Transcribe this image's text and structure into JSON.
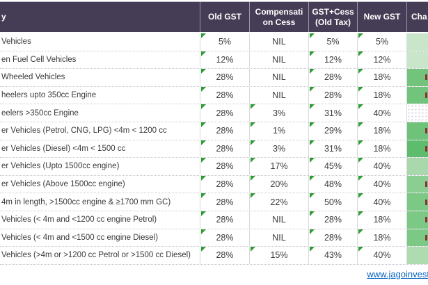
{
  "colors": {
    "header_bg": "#453c55",
    "header_text": "#ffffff",
    "body_text": "#3a3a3a",
    "grid_v": "#d9d9d9",
    "grid_h": "#c9c7d0",
    "triangle": "#2e9b33",
    "link": "#0563c1",
    "mark": "#8b3030",
    "pattern_dot": "#d5d0df",
    "change_light": "#c9e5ca",
    "change_strong": "#5ebd6d"
  },
  "header": {
    "category_label": "y",
    "old_gst": "Old GST",
    "cess": "Compensati\non Cess",
    "gst_cess": "GST+Cess\n(Old Tax)",
    "new_gst": "New GST",
    "change": "Cha"
  },
  "rows": [
    {
      "category": "Vehicles",
      "old_gst": "5%",
      "cess": "NIL",
      "gst_cess": "5%",
      "new_gst": "5%",
      "triangles": [
        "old_gst",
        "gst_cess",
        "new_gst"
      ],
      "change": {
        "color": "#c9e5ca",
        "pattern": false,
        "mark": false
      }
    },
    {
      "category": "en Fuel Cell Vehicles",
      "old_gst": "12%",
      "cess": "NIL",
      "gst_cess": "12%",
      "new_gst": "12%",
      "triangles": [
        "old_gst",
        "gst_cess",
        "new_gst"
      ],
      "change": {
        "color": "#c9e5ca",
        "pattern": false,
        "mark": false
      }
    },
    {
      "category": "Wheeled Vehicles",
      "old_gst": "28%",
      "cess": "NIL",
      "gst_cess": "28%",
      "new_gst": "18%",
      "triangles": [
        "old_gst",
        "gst_cess",
        "new_gst"
      ],
      "change": {
        "color": "#72c47d",
        "pattern": false,
        "mark": true
      }
    },
    {
      "category": "heelers upto 350cc Engine",
      "old_gst": "28%",
      "cess": "NIL",
      "gst_cess": "28%",
      "new_gst": "18%",
      "triangles": [
        "old_gst",
        "gst_cess",
        "new_gst"
      ],
      "change": {
        "color": "#72c47d",
        "pattern": false,
        "mark": true
      }
    },
    {
      "category": "eelers >350cc Engine",
      "old_gst": "28%",
      "cess": "3%",
      "gst_cess": "31%",
      "new_gst": "40%",
      "triangles": [
        "old_gst",
        "cess",
        "gst_cess",
        "new_gst"
      ],
      "change": {
        "color": "#ffffff",
        "pattern": true,
        "mark": false
      }
    },
    {
      "category": "er Vehicles (Petrol, CNG, LPG) <4m < 1200 cc",
      "old_gst": "28%",
      "cess": "1%",
      "gst_cess": "29%",
      "new_gst": "18%",
      "triangles": [
        "old_gst",
        "cess",
        "gst_cess",
        "new_gst"
      ],
      "change": {
        "color": "#6fc27a",
        "pattern": false,
        "mark": true
      }
    },
    {
      "category": "er Vehicles (Diesel) <4m < 1500 cc",
      "old_gst": "28%",
      "cess": "3%",
      "gst_cess": "31%",
      "new_gst": "18%",
      "triangles": [
        "old_gst",
        "cess",
        "gst_cess",
        "new_gst"
      ],
      "change": {
        "color": "#5ebd6d",
        "pattern": false,
        "mark": true
      }
    },
    {
      "category": "er Vehicles (Upto 1500cc engine)",
      "old_gst": "28%",
      "cess": "17%",
      "gst_cess": "45%",
      "new_gst": "40%",
      "triangles": [
        "old_gst",
        "cess",
        "gst_cess",
        "new_gst"
      ],
      "change": {
        "color": "#a9d8ac",
        "pattern": false,
        "mark": false
      }
    },
    {
      "category": "er Vehicles (Above 1500cc engine)",
      "old_gst": "28%",
      "cess": "20%",
      "gst_cess": "48%",
      "new_gst": "40%",
      "triangles": [
        "old_gst",
        "cess",
        "gst_cess",
        "new_gst"
      ],
      "change": {
        "color": "#8bce92",
        "pattern": false,
        "mark": true
      }
    },
    {
      "category": "4m in length, >1500cc engine & ≥1700 mm GC)",
      "old_gst": "28%",
      "cess": "22%",
      "gst_cess": "50%",
      "new_gst": "40%",
      "triangles": [
        "old_gst",
        "cess",
        "gst_cess",
        "new_gst"
      ],
      "change": {
        "color": "#7cc986",
        "pattern": false,
        "mark": true
      }
    },
    {
      "category": "Vehicles (< 4m and <1200 cc engine Petrol)",
      "old_gst": "28%",
      "cess": "NIL",
      "gst_cess": "28%",
      "new_gst": "18%",
      "triangles": [
        "old_gst",
        "gst_cess",
        "new_gst"
      ],
      "change": {
        "color": "#7cc986",
        "pattern": false,
        "mark": true
      }
    },
    {
      "category": "Vehicles (< 4m and <1500 cc engine Diesel)",
      "old_gst": "28%",
      "cess": "NIL",
      "gst_cess": "28%",
      "new_gst": "18%",
      "triangles": [
        "old_gst",
        "gst_cess",
        "new_gst"
      ],
      "change": {
        "color": "#7cc986",
        "pattern": false,
        "mark": true
      }
    },
    {
      "category": "Vehicles (>4m or >1200 cc Petrol or >1500 cc Diesel)",
      "old_gst": "28%",
      "cess": "15%",
      "gst_cess": "43%",
      "new_gst": "40%",
      "triangles": [
        "old_gst",
        "cess",
        "gst_cess",
        "new_gst"
      ],
      "change": {
        "color": "#aedbb0",
        "pattern": false,
        "mark": false
      }
    }
  ],
  "footer": {
    "link": "www.jagoinvest"
  }
}
